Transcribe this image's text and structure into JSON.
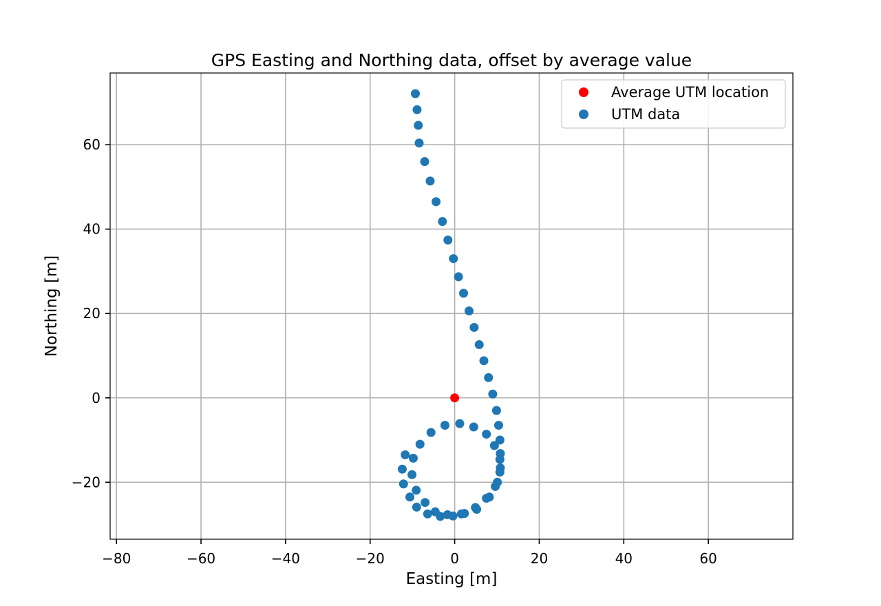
{
  "chart_data": {
    "type": "scatter",
    "title": "GPS Easting and Northing data, offset by average value",
    "xlabel": "Easting [m]",
    "ylabel": "Northing [m]",
    "xlim": [
      -81.5,
      80
    ],
    "ylim": [
      -33.5,
      77
    ],
    "xticks": [
      -80,
      -60,
      -40,
      -20,
      0,
      20,
      40,
      60
    ],
    "yticks": [
      -20,
      0,
      20,
      40,
      60
    ],
    "xtick_labels": [
      "−80",
      "−60",
      "−40",
      "−20",
      "0",
      "20",
      "40",
      "60"
    ],
    "ytick_labels": [
      "−20",
      "0",
      "20",
      "40",
      "60"
    ],
    "grid": true,
    "legend_position": "upper right",
    "series": [
      {
        "name": "Average UTM location",
        "color": "#ff0000",
        "points": [
          [
            0,
            0
          ]
        ]
      },
      {
        "name": "UTM data",
        "color": "#1f77b4",
        "points": [
          [
            -9.3,
            72.1
          ],
          [
            -8.9,
            68.3
          ],
          [
            -8.6,
            64.6
          ],
          [
            -8.4,
            60.4
          ],
          [
            -7.1,
            56.0
          ],
          [
            -5.8,
            51.4
          ],
          [
            -4.4,
            46.5
          ],
          [
            -2.9,
            41.8
          ],
          [
            -1.6,
            37.4
          ],
          [
            -0.3,
            33.0
          ],
          [
            0.9,
            28.7
          ],
          [
            2.1,
            24.8
          ],
          [
            3.4,
            20.6
          ],
          [
            4.6,
            16.7
          ],
          [
            5.8,
            12.6
          ],
          [
            6.9,
            8.8
          ],
          [
            8.0,
            4.8
          ],
          [
            9.0,
            0.9
          ],
          [
            9.9,
            -3.0
          ],
          [
            10.4,
            -6.5
          ],
          [
            10.7,
            -10.0
          ],
          [
            10.8,
            -13.2
          ],
          [
            10.7,
            -14.6
          ],
          [
            10.8,
            -16.6
          ],
          [
            10.7,
            -17.6
          ],
          [
            10.1,
            -20.0
          ],
          [
            9.6,
            -21.0
          ],
          [
            8.2,
            -23.5
          ],
          [
            7.5,
            -23.8
          ],
          [
            4.9,
            -26.0
          ],
          [
            5.2,
            -26.4
          ],
          [
            2.3,
            -27.4
          ],
          [
            1.6,
            -27.5
          ],
          [
            -0.4,
            -28.0
          ],
          [
            -1.7,
            -27.7
          ],
          [
            -3.4,
            -28.1
          ],
          [
            -4.6,
            -27.0
          ],
          [
            -6.4,
            -27.5
          ],
          [
            -7.0,
            -24.8
          ],
          [
            -9.0,
            -25.9
          ],
          [
            -9.1,
            -21.9
          ],
          [
            -10.6,
            -23.5
          ],
          [
            -10.1,
            -18.2
          ],
          [
            -12.1,
            -20.4
          ],
          [
            -12.4,
            -16.9
          ],
          [
            -11.7,
            -13.5
          ],
          [
            -9.8,
            -14.3
          ],
          [
            -8.2,
            -11.0
          ],
          [
            -5.6,
            -8.2
          ],
          [
            -2.3,
            -6.5
          ],
          [
            1.2,
            -6.1
          ],
          [
            4.5,
            -6.9
          ],
          [
            7.5,
            -8.6
          ],
          [
            9.4,
            -11.3
          ]
        ]
      }
    ]
  }
}
